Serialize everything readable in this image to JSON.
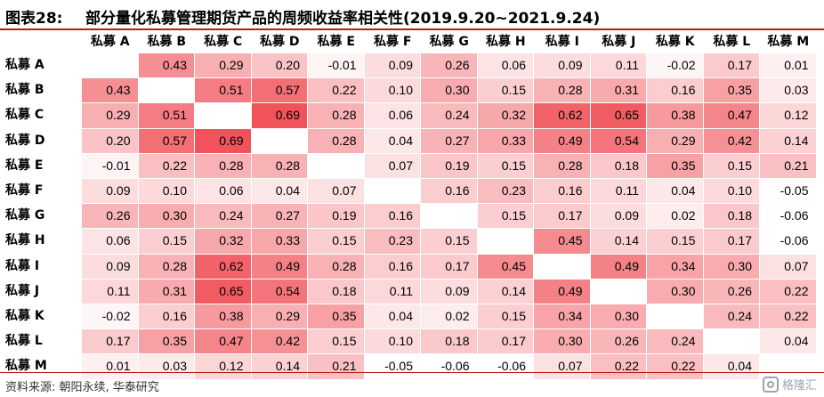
{
  "figure": {
    "label": "图表28:",
    "title": "部分量化私募管理期货产品的周频收益率相关性(2019.9.20~2021.9.24)"
  },
  "chart_data": {
    "type": "heatmap",
    "title": "部分量化私募管理期货产品的周频收益率相关性(2019.9.20~2021.9.24)",
    "columns": [
      "私募 A",
      "私募 B",
      "私募 C",
      "私募 D",
      "私募 E",
      "私募 F",
      "私募 G",
      "私募 H",
      "私募 I",
      "私募 J",
      "私募 K",
      "私募 L",
      "私募 M"
    ],
    "rows": [
      "私募 A",
      "私募 B",
      "私募 C",
      "私募 D",
      "私募 E",
      "私募 F",
      "私募 G",
      "私募 H",
      "私募 I",
      "私募 J",
      "私募 K",
      "私募 L",
      "私募 M"
    ],
    "values": [
      [
        null,
        0.43,
        0.29,
        0.2,
        -0.01,
        0.09,
        0.26,
        0.06,
        0.09,
        0.11,
        -0.02,
        0.17,
        0.01
      ],
      [
        0.43,
        null,
        0.51,
        0.57,
        0.22,
        0.1,
        0.3,
        0.15,
        0.28,
        0.31,
        0.16,
        0.35,
        0.03
      ],
      [
        0.29,
        0.51,
        null,
        0.69,
        0.28,
        0.06,
        0.24,
        0.32,
        0.62,
        0.65,
        0.38,
        0.47,
        0.12
      ],
      [
        0.2,
        0.57,
        0.69,
        null,
        0.28,
        0.04,
        0.27,
        0.33,
        0.49,
        0.54,
        0.29,
        0.42,
        0.14
      ],
      [
        -0.01,
        0.22,
        0.28,
        0.28,
        null,
        0.07,
        0.19,
        0.15,
        0.28,
        0.18,
        0.35,
        0.15,
        0.21
      ],
      [
        0.09,
        0.1,
        0.06,
        0.04,
        0.07,
        null,
        0.16,
        0.23,
        0.16,
        0.11,
        0.04,
        0.1,
        -0.05
      ],
      [
        0.26,
        0.3,
        0.24,
        0.27,
        0.19,
        0.16,
        null,
        0.15,
        0.17,
        0.09,
        0.02,
        0.18,
        -0.06
      ],
      [
        0.06,
        0.15,
        0.32,
        0.33,
        0.15,
        0.23,
        0.15,
        null,
        0.45,
        0.14,
        0.15,
        0.17,
        -0.06
      ],
      [
        0.09,
        0.28,
        0.62,
        0.49,
        0.28,
        0.16,
        0.17,
        0.45,
        null,
        0.49,
        0.34,
        0.3,
        0.07
      ],
      [
        0.11,
        0.31,
        0.65,
        0.54,
        0.18,
        0.11,
        0.09,
        0.14,
        0.49,
        null,
        0.3,
        0.26,
        0.22
      ],
      [
        -0.02,
        0.16,
        0.38,
        0.29,
        0.35,
        0.04,
        0.02,
        0.15,
        0.34,
        0.3,
        null,
        0.24,
        0.22
      ],
      [
        0.17,
        0.35,
        0.47,
        0.42,
        0.15,
        0.1,
        0.18,
        0.17,
        0.3,
        0.26,
        0.24,
        null,
        0.04
      ],
      [
        0.01,
        0.03,
        0.12,
        0.14,
        0.21,
        -0.05,
        -0.06,
        -0.06,
        0.07,
        0.22,
        0.22,
        0.04,
        null
      ]
    ],
    "color_scale": {
      "low": "#ffffff",
      "high": "#f0535a",
      "min": -0.06,
      "max": 0.69
    }
  },
  "footer": {
    "source": "资料来源: 朝阳永续, 华泰研究",
    "watermark": "格隆汇"
  }
}
